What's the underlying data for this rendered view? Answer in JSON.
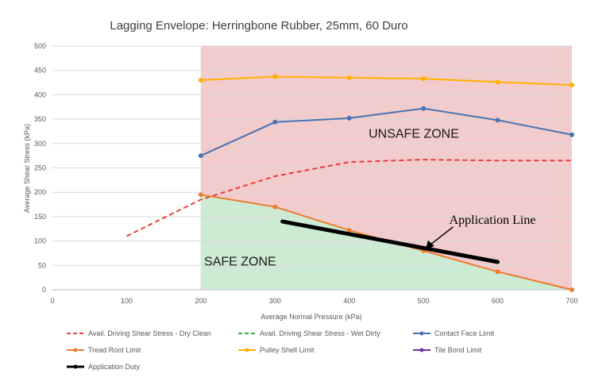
{
  "chart_data": {
    "type": "line",
    "title": "Lagging Envelope: Herringbone Rubber, 25mm, 60 Duro",
    "xlabel": "Average Normal Pressure (kPa)",
    "ylabel": "Average Shear Stress (kPa)",
    "xlim": [
      0,
      700
    ],
    "ylim": [
      0,
      500
    ],
    "xticks": [
      0,
      100,
      200,
      300,
      400,
      500,
      600,
      700
    ],
    "yticks": [
      0,
      50,
      100,
      150,
      200,
      250,
      300,
      350,
      400,
      450,
      500
    ],
    "grid": "horizontal",
    "legend_position": "bottom",
    "series": [
      {
        "name": "Avail. Driving Shear Stress - Dry Clean",
        "color": "#e83e3e",
        "dash": true,
        "markers": false,
        "x": [
          100,
          200,
          300,
          400,
          500,
          600,
          700
        ],
        "y": [
          110,
          185,
          233,
          262,
          267,
          265,
          265
        ]
      },
      {
        "name": "Avail. Driving Shear Stress - Wet Dirty",
        "color": "#2bb24c",
        "dash": true,
        "markers": false,
        "x": [],
        "y": []
      },
      {
        "name": "Contact Face Limit",
        "color": "#4a73b3",
        "dash": false,
        "markers": true,
        "x": [
          200,
          300,
          400,
          500,
          600,
          700
        ],
        "y": [
          275,
          344,
          352,
          372,
          348,
          318
        ]
      },
      {
        "name": "Tread Root Limit",
        "color": "#ed7d31",
        "dash": false,
        "markers": true,
        "x": [
          200,
          300,
          400,
          500,
          600,
          700
        ],
        "y": [
          195,
          170,
          122,
          80,
          37,
          0
        ]
      },
      {
        "name": "Pulley Shell Limit",
        "color": "#ffb000",
        "dash": false,
        "markers": true,
        "x": [
          200,
          300,
          400,
          500,
          600,
          700
        ],
        "y": [
          430,
          437,
          435,
          433,
          426,
          420
        ]
      },
      {
        "name": "Tile Bond Limit",
        "color": "#7030a0",
        "dash": false,
        "markers": true,
        "x": [],
        "y": []
      },
      {
        "name": "Application Duty",
        "color": "#000000",
        "dash": false,
        "markers": true,
        "thick": true,
        "x": [
          310,
          600
        ],
        "y": [
          140,
          57
        ]
      }
    ],
    "zones": {
      "unsafe": {
        "label": "UNSAFE ZONE",
        "color": "#f2cccc"
      },
      "safe": {
        "label": "SAFE ZONE",
        "color": "#cdebd3"
      }
    },
    "annotation": {
      "text": "Application Line",
      "x": 505,
      "y": 85
    }
  }
}
